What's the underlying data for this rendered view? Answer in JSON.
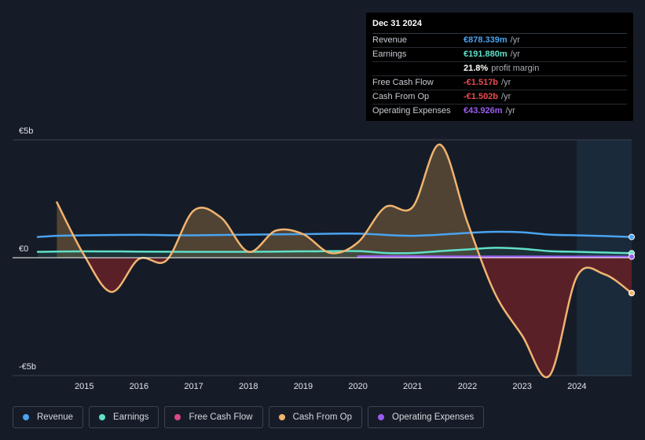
{
  "tooltip": {
    "date": "Dec 31 2024",
    "rows": [
      {
        "label": "Revenue",
        "value": "€878.339m",
        "unit": "/yr",
        "color": "#4aa3f0"
      },
      {
        "label": "Earnings",
        "value": "€191.880m",
        "unit": "/yr",
        "color": "#5fe0c8"
      },
      {
        "label": "",
        "value": "21.8%",
        "unit": "profit margin",
        "color": "#ffffff"
      },
      {
        "label": "Free Cash Flow",
        "value": "-€1.517b",
        "unit": "/yr",
        "color": "#e84a50"
      },
      {
        "label": "Cash From Op",
        "value": "-€1.502b",
        "unit": "/yr",
        "color": "#e84a50"
      },
      {
        "label": "Operating Expenses",
        "value": "€43.926m",
        "unit": "/yr",
        "color": "#9b5cf0"
      }
    ]
  },
  "legend": [
    {
      "label": "Revenue",
      "color": "#4aa3f0"
    },
    {
      "label": "Earnings",
      "color": "#5fe0c8"
    },
    {
      "label": "Free Cash Flow",
      "color": "#d9488a"
    },
    {
      "label": "Cash From Op",
      "color": "#f0b470"
    },
    {
      "label": "Operating Expenses",
      "color": "#9b5cf0"
    }
  ],
  "chart_data": {
    "type": "area",
    "title": "",
    "xlabel": "",
    "ylabel": "",
    "currency_unit": "EUR billions",
    "y_tick_labels": [
      "€5b",
      "€0",
      "-€5b"
    ],
    "y_ticks": [
      5,
      0,
      -5
    ],
    "ylim": [
      -5,
      5
    ],
    "xlim": [
      2014.15,
      2025.0
    ],
    "x_tick_labels": [
      "2015",
      "2016",
      "2017",
      "2018",
      "2019",
      "2020",
      "2021",
      "2022",
      "2023",
      "2024"
    ],
    "x_ticks": [
      2015,
      2016,
      2017,
      2018,
      2019,
      2020,
      2021,
      2022,
      2023,
      2024
    ],
    "forecast_start": 2024.0,
    "series": [
      {
        "name": "Revenue",
        "color": "#4aa3f0",
        "x": [
          2014.15,
          2014.5,
          2015.0,
          2016.0,
          2017.0,
          2018.0,
          2019.0,
          2020.0,
          2021.0,
          2022.0,
          2022.5,
          2023.0,
          2023.5,
          2024.0,
          2024.5,
          2025.0
        ],
        "y": [
          0.88,
          0.93,
          0.95,
          0.97,
          0.95,
          0.98,
          1.0,
          1.02,
          0.93,
          1.05,
          1.1,
          1.08,
          0.98,
          0.95,
          0.92,
          0.88
        ]
      },
      {
        "name": "Earnings",
        "color": "#5fe0c8",
        "x": [
          2014.15,
          2015.0,
          2016.0,
          2017.0,
          2018.0,
          2019.0,
          2020.0,
          2020.5,
          2021.0,
          2021.5,
          2022.0,
          2022.5,
          2023.0,
          2023.5,
          2024.0,
          2024.5,
          2025.0
        ],
        "y": [
          0.25,
          0.27,
          0.26,
          0.25,
          0.25,
          0.27,
          0.28,
          0.2,
          0.2,
          0.28,
          0.35,
          0.42,
          0.38,
          0.28,
          0.25,
          0.22,
          0.19
        ]
      },
      {
        "name": "Operating Expenses",
        "color": "#9b5cf0",
        "x": [
          2020.0,
          2021.0,
          2022.0,
          2023.0,
          2024.0,
          2025.0
        ],
        "y": [
          0.06,
          0.06,
          0.05,
          0.05,
          0.045,
          0.044
        ]
      },
      {
        "name": "Cash From Op",
        "color": "#f0b470",
        "x": [
          2014.5,
          2015.0,
          2015.5,
          2016.0,
          2016.5,
          2017.0,
          2017.5,
          2018.0,
          2018.5,
          2019.0,
          2019.5,
          2020.0,
          2020.5,
          2021.0,
          2021.5,
          2022.0,
          2022.5,
          2023.0,
          2023.5,
          2024.0,
          2024.5,
          2025.0
        ],
        "y": [
          2.35,
          0.1,
          -1.45,
          -0.05,
          -0.12,
          2.0,
          1.7,
          0.25,
          1.15,
          1.0,
          0.2,
          0.65,
          2.15,
          2.15,
          4.8,
          1.5,
          -1.5,
          -3.3,
          -5.0,
          -0.8,
          -0.7,
          -1.5
        ]
      },
      {
        "name": "Free Cash Flow",
        "color": "#d9488a",
        "x": [
          2014.5,
          2015.0,
          2015.5,
          2016.0,
          2016.5,
          2017.0,
          2017.5,
          2018.0,
          2018.5,
          2019.0,
          2019.5,
          2020.0,
          2020.5,
          2021.0,
          2021.5,
          2022.0,
          2022.5,
          2023.0,
          2023.5,
          2024.0,
          2024.5,
          2025.0
        ],
        "y": [
          2.35,
          0.1,
          -1.45,
          -0.05,
          -0.12,
          2.0,
          1.7,
          0.25,
          1.15,
          1.0,
          0.2,
          0.65,
          2.15,
          2.15,
          4.8,
          1.5,
          -1.5,
          -3.3,
          -5.0,
          -0.8,
          -0.7,
          -1.5
        ]
      }
    ]
  }
}
